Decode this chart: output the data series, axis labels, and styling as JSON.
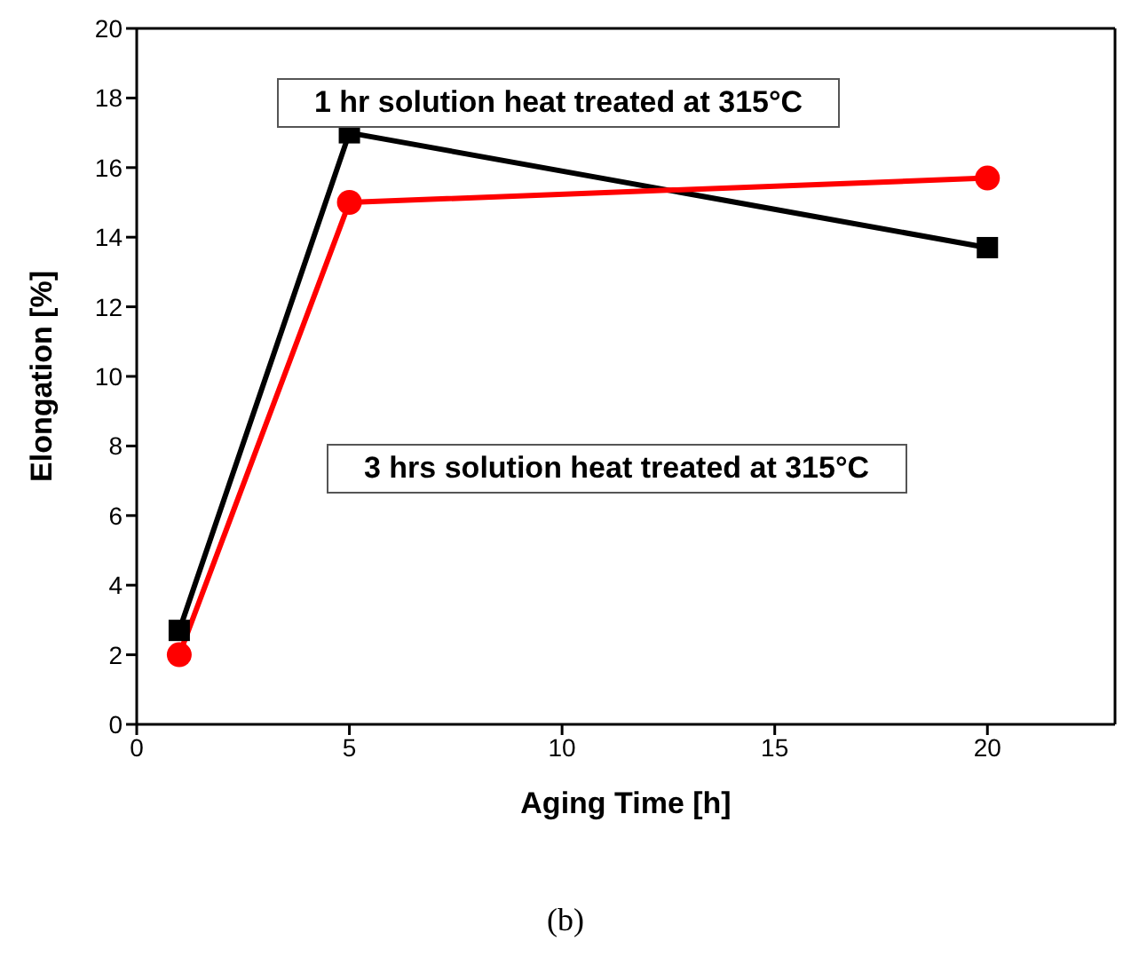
{
  "chart_data": {
    "type": "line",
    "xlabel": "Aging Time [h]",
    "ylabel": "Elongation [%]",
    "x": [
      1,
      5,
      20
    ],
    "series": [
      {
        "color": "#000000",
        "marker": "square",
        "values": [
          2.7,
          17.0,
          13.7
        ]
      },
      {
        "color": "#ff0000",
        "marker": "circle",
        "values": [
          2.0,
          15.0,
          15.7
        ]
      }
    ],
    "xlim": [
      0,
      23
    ],
    "xticks": [
      0,
      5,
      10,
      15,
      20
    ],
    "ylim": [
      0,
      20
    ],
    "yticks": [
      0,
      2,
      4,
      6,
      8,
      10,
      12,
      14,
      16,
      18,
      20
    ],
    "line_style": "solid",
    "annotations": [
      "1 hr solution heat treated at 315°C",
      "3 hrs solution heat treated at 315°C",
      "(b)"
    ]
  }
}
